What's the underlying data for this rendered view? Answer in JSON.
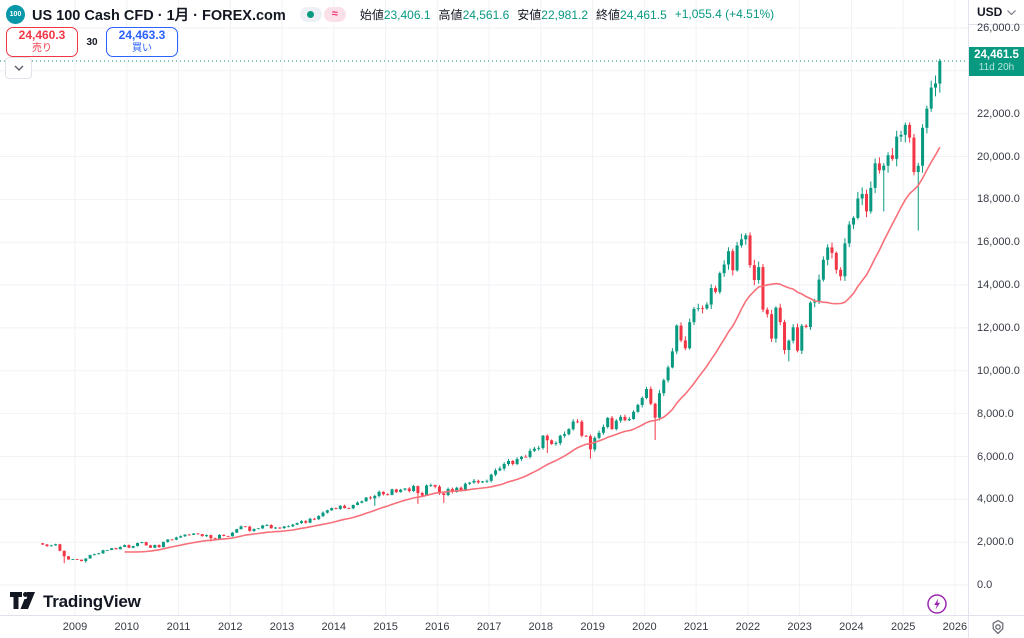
{
  "header": {
    "symbol_badge": "100",
    "title": "US 100 Cash CFD · 1月 · FOREX.com",
    "approx_symbol": "≈",
    "ohlc": {
      "open_label": "始値",
      "open": "23,406.1",
      "high_label": "高値",
      "high": "24,561.6",
      "low_label": "安値",
      "low": "22,981.2",
      "close_label": "終値",
      "close": "24,461.5",
      "change": "+1,055.4 (+4.51%)"
    }
  },
  "trade_panel": {
    "sell_price": "24,460.3",
    "sell_label": "売り",
    "spread": "30",
    "buy_price": "24,463.3",
    "buy_label": "買い"
  },
  "price_axis": {
    "currency": "USD",
    "current_badge": {
      "price": "24,461.5",
      "countdown": "11d 20h"
    },
    "labels": [
      {
        "text": "26,000.0",
        "value": 26000
      },
      {
        "text": "22,000.0",
        "value": 22000
      },
      {
        "text": "20,000.0",
        "value": 20000
      },
      {
        "text": "18,000.0",
        "value": 18000
      },
      {
        "text": "16,000.0",
        "value": 16000
      },
      {
        "text": "14,000.0",
        "value": 14000
      },
      {
        "text": "12,000.0",
        "value": 12000
      },
      {
        "text": "10,000.0",
        "value": 10000
      },
      {
        "text": "8,000.0",
        "value": 8000
      },
      {
        "text": "6,000.0",
        "value": 6000
      },
      {
        "text": "4,000.0",
        "value": 4000
      },
      {
        "text": "2,000.0",
        "value": 2000
      },
      {
        "text": "0.0",
        "value": 0
      }
    ]
  },
  "time_axis": {
    "years": [
      "2009",
      "2010",
      "2011",
      "2012",
      "2013",
      "2014",
      "2015",
      "2016",
      "2017",
      "2018",
      "2019",
      "2020",
      "2021",
      "2022",
      "2023",
      "2024",
      "2025",
      "2026"
    ]
  },
  "footer": {
    "brand": "TradingView"
  },
  "colors": {
    "up": "#089981",
    "down": "#f23645",
    "ma_line": "#f7707a",
    "sell": "#f23645",
    "buy": "#2962ff",
    "current_price_badge": "#089981",
    "symbol_logo": "#0897a8",
    "lightning": "#9c27b0",
    "grid": "#f0f2f6"
  },
  "chart_data": {
    "type": "candlestick",
    "title": "US 100 Cash CFD monthly candles with moving average",
    "symbol": "US 100 Cash CFD",
    "interval": "1月",
    "source": "FOREX.com",
    "currency": "USD",
    "x_axis": {
      "start_year": 2009,
      "end_year": 2026
    },
    "y_axis": {
      "min": 0,
      "max": 26000,
      "tick_step": 2000
    },
    "legend_position": "top-left",
    "grid": true,
    "start_month": "2008-05",
    "first_open": 1950,
    "ohlc_current": {
      "open": 23406.1,
      "high": 24561.6,
      "low": 22981.2,
      "close": 24461.5
    },
    "current_price": 24461.5,
    "ma": {
      "period": 20
    },
    "monthly_closes": [
      1890,
      1816,
      1845,
      1903,
      1600,
      1341,
      1190,
      1211,
      1180,
      1117,
      1237,
      1394,
      1437,
      1478,
      1622,
      1631,
      1717,
      1668,
      1779,
      1860,
      1741,
      1820,
      1960,
      2001,
      1849,
      1741,
      1864,
      1767,
      2014,
      2124,
      2119,
      2218,
      2277,
      2351,
      2339,
      2404,
      2373,
      2281,
      2329,
      2186,
      2152,
      2340,
      2287,
      2278,
      2444,
      2606,
      2738,
      2723,
      2525,
      2615,
      2645,
      2778,
      2799,
      2648,
      2678,
      2661,
      2732,
      2739,
      2818,
      2891,
      2981,
      2909,
      3090,
      3073,
      3218,
      3377,
      3487,
      3592,
      3553,
      3696,
      3591,
      3580,
      3736,
      3844,
      3906,
      4082,
      4049,
      4158,
      4347,
      4236,
      4208,
      4464,
      4334,
      4451,
      4505,
      4387,
      4618,
      4291,
      4181,
      4646,
      4664,
      4593,
      4279,
      4201,
      4484,
      4341,
      4541,
      4393,
      4728,
      4783,
      4863,
      4790,
      4837,
      4863,
      5154,
      5349,
      5437,
      5647,
      5789,
      5647,
      5880,
      5988,
      5979,
      6263,
      6364,
      6396,
      6969,
      6756,
      6581,
      6624,
      6966,
      7041,
      7276,
      7631,
      7627,
      6966,
      6949,
      6330,
      6869,
      7101,
      7378,
      7801,
      7278,
      7671,
      7848,
      7691,
      7749,
      8084,
      8404,
      8733,
      9151,
      8461,
      7813,
      8952,
      9556,
      10157,
      10905,
      12110,
      11418,
      11052,
      12268,
      12888,
      12925,
      12909,
      13091,
      13860,
      13686,
      14554,
      14959,
      15582,
      14689,
      15850,
      16135,
      16320,
      14930,
      14237,
      14838,
      12854,
      12642,
      11503,
      12947,
      12272,
      10971,
      11405,
      12030,
      10939,
      12101,
      12042,
      13181,
      13245,
      14254,
      15179,
      15757,
      15501,
      14715,
      14409,
      15947,
      16825,
      17137,
      18043,
      18254,
      17440,
      18536,
      19682,
      19362,
      19574,
      20060,
      19890,
      20930,
      21012,
      21478,
      20884,
      19278,
      19571,
      21340,
      22237,
      23218,
      23415,
      24461.5
    ],
    "wick_overrides": {
      "2008-10": {
        "low": 1018
      },
      "2009-03": {
        "low": 1040
      },
      "2011-08": {
        "low": 2034
      },
      "2014-10": {
        "low": 3700
      },
      "2015-08": {
        "low": 3787
      },
      "2016-02": {
        "low": 3831
      },
      "2018-02": {
        "low": 6164
      },
      "2018-12": {
        "low": 5895
      },
      "2020-03": {
        "low": 6772
      },
      "2022-10": {
        "low": 10440
      },
      "2024-08": {
        "low": 17435
      },
      "2025-04": {
        "low": 16542
      }
    }
  }
}
